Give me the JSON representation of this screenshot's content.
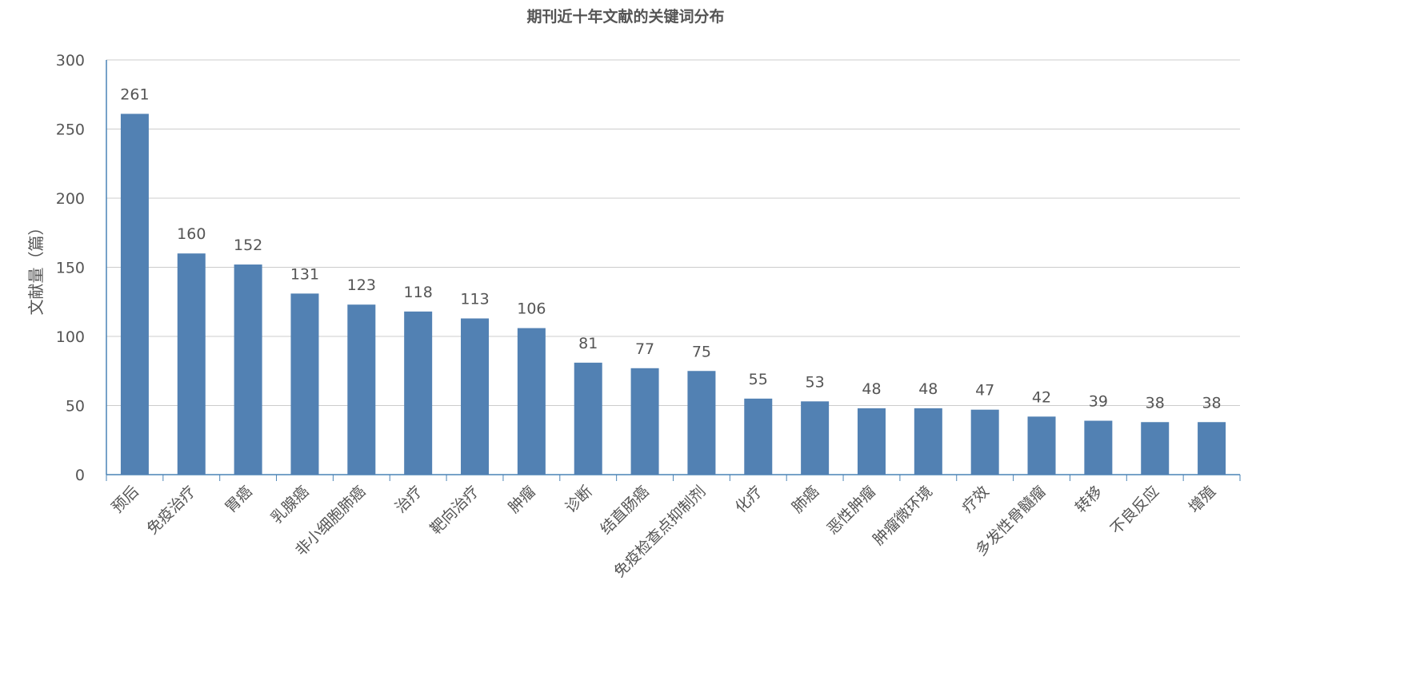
{
  "chart_data": {
    "type": "bar",
    "title": "期刊近十年文献的关键词分布",
    "ylabel": "文献量（篇）",
    "xlabel": "",
    "ylim": [
      0,
      300
    ],
    "yticks": [
      0,
      50,
      100,
      150,
      200,
      250,
      300
    ],
    "grid": true,
    "colors": {
      "bar": "#5281b3",
      "axis": "#4a83b5",
      "grid": "#cccccc",
      "text": "#555555"
    },
    "categories": [
      "预后",
      "免疫治疗",
      "胃癌",
      "乳腺癌",
      "非小细胞肺癌",
      "治疗",
      "靶向治疗",
      "肿瘤",
      "诊断",
      "结直肠癌",
      "免疫检查点抑制剂",
      "化疗",
      "肺癌",
      "恶性肿瘤",
      "肿瘤微环境",
      "疗效",
      "多发性骨髓瘤",
      "转移",
      "不良反应",
      "增殖"
    ],
    "values": [
      261,
      160,
      152,
      131,
      123,
      118,
      113,
      106,
      81,
      77,
      75,
      55,
      53,
      48,
      48,
      47,
      42,
      39,
      38,
      38
    ]
  }
}
